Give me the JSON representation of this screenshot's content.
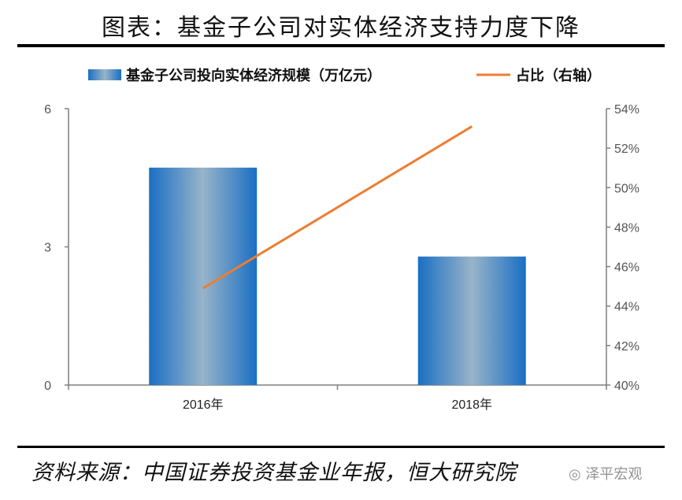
{
  "title": "图表：基金子公司对实体经济支持力度下降",
  "source": "资料来源：中国证券投资基金业年报，恒大研究院",
  "watermark": "泽平宏观",
  "colors": {
    "bar": "#1a6fc4",
    "bar_center": "#98b4c8",
    "line": "#ed7d31",
    "axis": "#7f7f7f"
  },
  "chart_data": {
    "type": "bar+line",
    "categories": [
      "2016年",
      "2018年"
    ],
    "series": [
      {
        "name": "基金子公司投向实体经济规模（万亿元）",
        "type": "bar",
        "axis": "left",
        "values": [
          4.72,
          2.79
        ]
      },
      {
        "name": "占比（右轴）",
        "type": "line",
        "axis": "right",
        "values": [
          44.9,
          53.1
        ]
      }
    ],
    "left_axis": {
      "ylim": [
        0,
        6
      ],
      "ticks": [
        "0",
        "3",
        "6"
      ]
    },
    "right_axis": {
      "ylim": [
        40,
        54
      ],
      "ticks": [
        "40%",
        "42%",
        "44%",
        "46%",
        "48%",
        "50%",
        "52%",
        "54%"
      ]
    },
    "legend": "top",
    "grid": false
  }
}
